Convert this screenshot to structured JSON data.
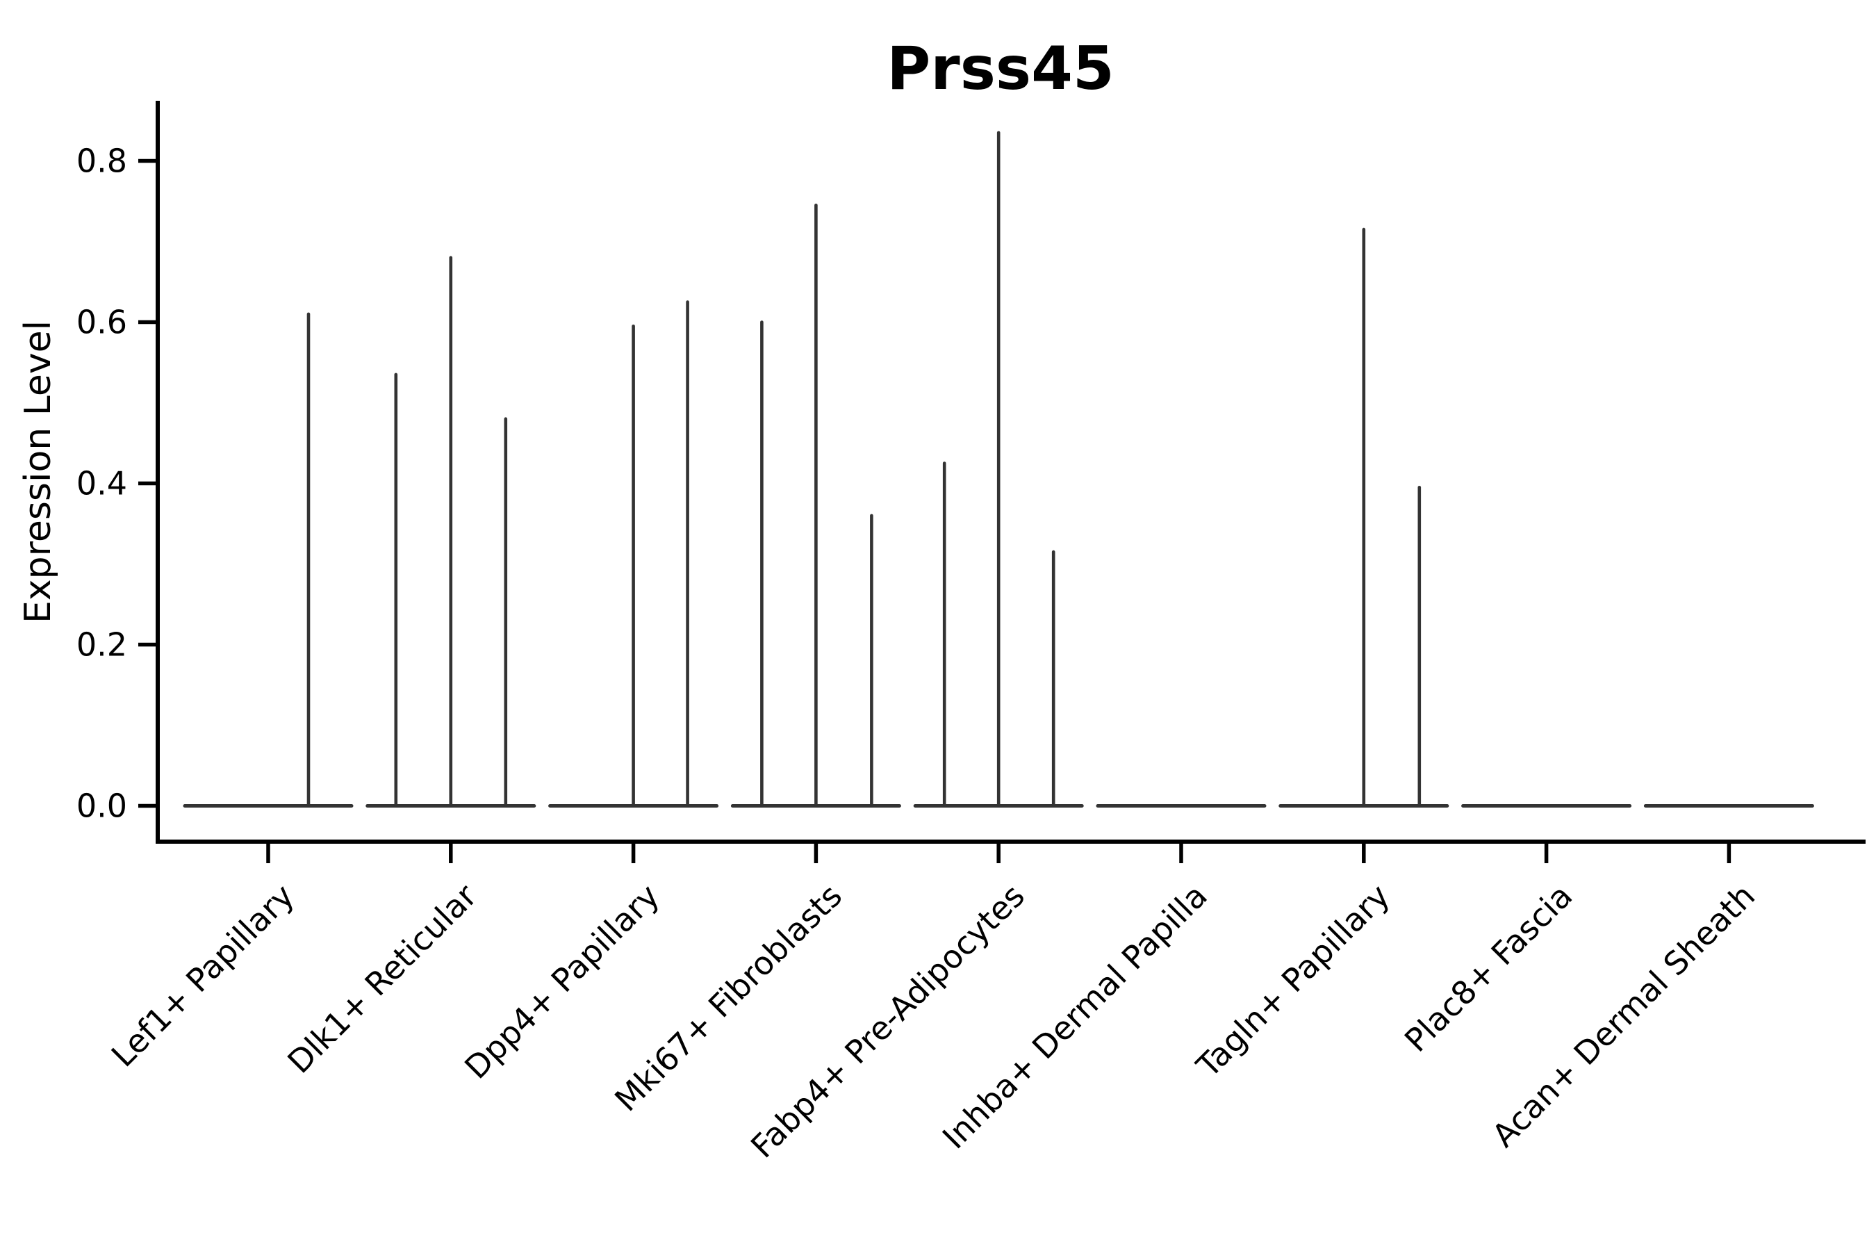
{
  "chart_data": {
    "type": "violin",
    "title": "Prss45",
    "xlabel": "",
    "ylabel": "Expression Level",
    "ylim": [
      0,
      0.875
    ],
    "grid": false,
    "legend": "none",
    "background": "#ffffff",
    "colors": {
      "axis": "#000000",
      "text": "#000000",
      "violin": "#333333"
    },
    "yticks": [
      0.0,
      0.2,
      0.4,
      0.6,
      0.8
    ],
    "ytick_labels": [
      "0.0",
      "0.2",
      "0.4",
      "0.6",
      "0.8"
    ],
    "categories": [
      "Lef1+ Papillary",
      "Dlk1+ Reticular",
      "Dpp4+ Papillary",
      "Mki67+ Fibroblasts",
      "Fabp4+ Pre-Adipocytes",
      "Inhba+ Dermal Papilla",
      "Tagln+ Papillary",
      "Plac8+ Fascia",
      "Acan+ Dermal Sheath"
    ],
    "baseline_value": 0.0,
    "violins": [
      {
        "category": "Lef1+ Papillary",
        "spikes": [
          {
            "dx": 58,
            "value": 0.61
          }
        ]
      },
      {
        "category": "Dlk1+ Reticular",
        "spikes": [
          {
            "dx": -79,
            "value": 0.535
          },
          {
            "dx": 0,
            "value": 0.68
          },
          {
            "dx": 79,
            "value": 0.48
          }
        ]
      },
      {
        "category": "Dpp4+ Papillary",
        "spikes": [
          {
            "dx": 0,
            "value": 0.595
          },
          {
            "dx": 78,
            "value": 0.625
          }
        ]
      },
      {
        "category": "Mki67+ Fibroblasts",
        "spikes": [
          {
            "dx": -78,
            "value": 0.6
          },
          {
            "dx": 0,
            "value": 0.745
          },
          {
            "dx": 80,
            "value": 0.36
          }
        ]
      },
      {
        "category": "Fabp4+ Pre-Adipocytes",
        "spikes": [
          {
            "dx": -78,
            "value": 0.425
          },
          {
            "dx": 0,
            "value": 0.835
          },
          {
            "dx": 79,
            "value": 0.315
          }
        ]
      },
      {
        "category": "Inhba+ Dermal Papilla",
        "spikes": []
      },
      {
        "category": "Tagln+ Papillary",
        "spikes": [
          {
            "dx": 0,
            "value": 0.715
          },
          {
            "dx": 80,
            "value": 0.395
          }
        ]
      },
      {
        "category": "Plac8+ Fascia",
        "spikes": []
      },
      {
        "category": "Acan+ Dermal Sheath",
        "spikes": []
      }
    ]
  }
}
